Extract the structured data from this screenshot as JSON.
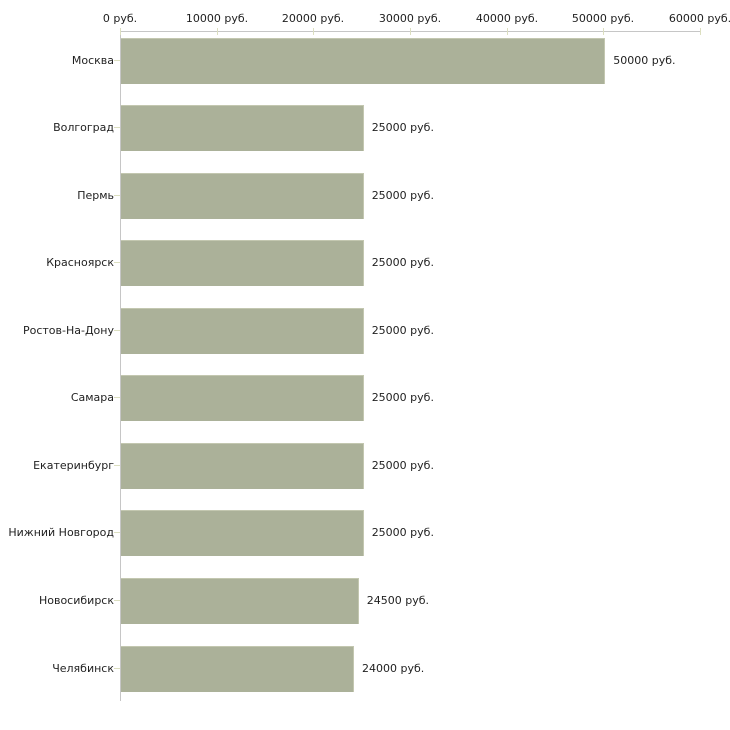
{
  "chart_data": {
    "type": "bar",
    "orientation": "horizontal",
    "title": "",
    "unit": "руб.",
    "categories": [
      "Москва",
      "Волгоград",
      "Пермь",
      "Красноярск",
      "Ростов-На-Дону",
      "Самара",
      "Екатеринбург",
      "Нижний Новгород",
      "Новосибирск",
      "Челябинск"
    ],
    "values": [
      50000,
      25000,
      25000,
      25000,
      25000,
      25000,
      25000,
      25000,
      24500,
      24000
    ],
    "value_labels": [
      "50000 руб.",
      "25000 руб.",
      "25000 руб.",
      "25000 руб.",
      "25000 руб.",
      "25000 руб.",
      "25000 руб.",
      "25000 руб.",
      "24500 руб.",
      "24000 руб."
    ],
    "x_axis": {
      "position": "top",
      "min": 0,
      "max": 60000,
      "tick_step": 10000,
      "ticks": [
        0,
        10000,
        20000,
        30000,
        40000,
        50000,
        60000
      ],
      "tick_labels": [
        "0 руб.",
        "10000 руб.",
        "20000 руб.",
        "30000 руб.",
        "40000 руб.",
        "50000 руб.",
        "60000 руб."
      ]
    },
    "legend": false,
    "grid": false,
    "colors": {
      "bar_fill": "#abb199",
      "bar_edge": "#c3c7b0",
      "axis_line": "#c6c6c6",
      "tick_mark": "#dcdfc0",
      "text": "#1f1f1f"
    }
  }
}
